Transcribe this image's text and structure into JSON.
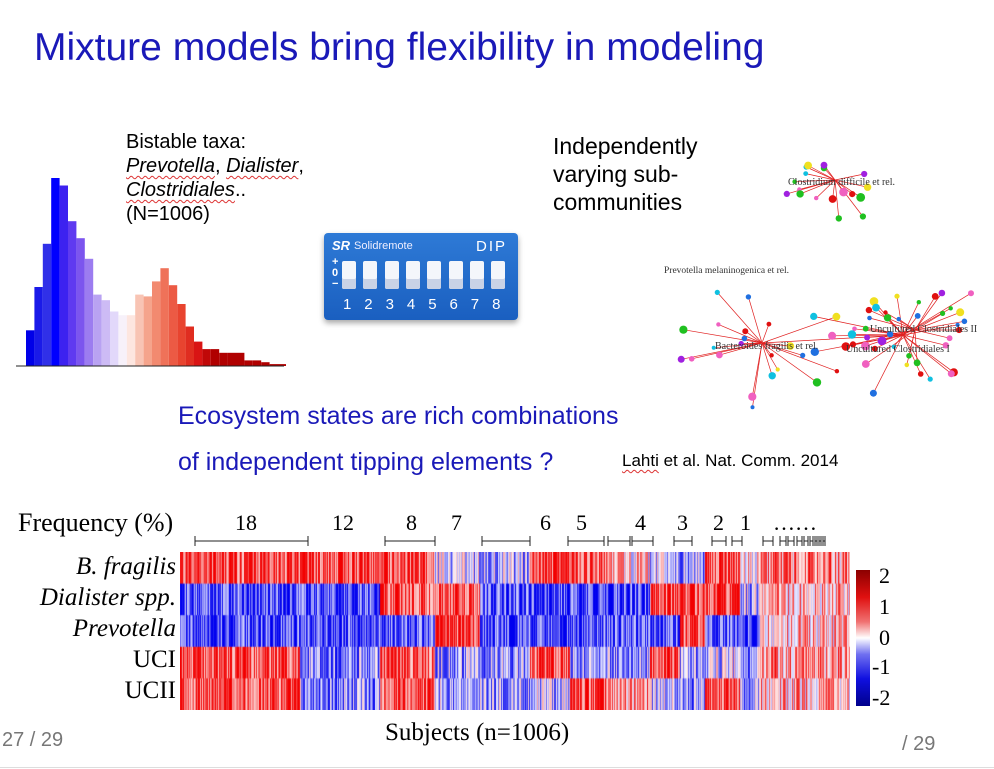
{
  "slide": {
    "title": "Mixture models bring flexibility in modeling",
    "page_left": "27 / 29",
    "page_right": "/ 29"
  },
  "bistable": {
    "line1": "Bistable taxa:",
    "taxa1": "Prevotella",
    "sep1": ", ",
    "taxa2": "Dialister",
    "sep2": ",",
    "taxa3": "Clostridiales",
    "sep3": "..",
    "n": "(N=1006)"
  },
  "histogram": {
    "values": [
      19,
      42,
      65,
      100,
      96,
      77,
      68,
      57,
      38,
      35,
      29,
      27,
      27,
      38,
      37,
      45,
      52,
      43,
      33,
      21,
      13,
      9,
      9,
      7,
      7,
      7,
      3,
      3,
      2,
      1,
      1,
      1
    ],
    "colors": [
      "#0000e8",
      "#1a1ae8",
      "#3030e8",
      "#0000ff",
      "#3d22f0",
      "#5f3af0",
      "#7c55ee",
      "#9c7cf0",
      "#b9a2f2",
      "#cdbbf5",
      "#e2d8fa",
      "#f7f1fa",
      "#fde6e0",
      "#f8c4b4",
      "#f5a48c",
      "#f28a70",
      "#ef7259",
      "#ec5a44",
      "#e8442f",
      "#e02d20",
      "#d91414",
      "#c00808",
      "#b00000",
      "#b00000",
      "#b00000",
      "#b00000",
      "#b00000",
      "#b00000",
      "#b00000",
      "#b00000",
      "#b00000",
      "#b00000"
    ]
  },
  "dip": {
    "brand": "Solidremote",
    "logo": "SR",
    "label": "DIP",
    "on": "+",
    "zero": "0",
    "off": "−",
    "numbers": [
      "1",
      "2",
      "3",
      "4",
      "5",
      "6",
      "7",
      "8"
    ]
  },
  "independent": {
    "line1": "Independently",
    "line2": "varying sub-",
    "line3": "communities"
  },
  "networks": {
    "label1": "Clostridium difficile et rel.",
    "label2": "Prevotella melaninogenica et rel.",
    "label3": "Bacteroides fragilis et rel.",
    "label4": "Uncultured Clostridiales I",
    "label5": "Uncultured Clostridiales II"
  },
  "ecosystem": {
    "line1": "Ecosystem states are rich combinations",
    "line2": "of  independent tipping elements ?"
  },
  "citation": {
    "author": "Lahti",
    "rest": " et al. Nat. Comm. 2014"
  },
  "heatmap": {
    "frequency_label": "Frequency (%)",
    "frequencies": [
      "18",
      "12",
      "8",
      "7",
      "6",
      "5",
      "4",
      "3",
      "2",
      "1",
      "……"
    ],
    "rows": [
      "B. fragilis",
      "Dialister spp.",
      "Prevotella",
      "UCI",
      "UCII"
    ],
    "xlabel": "Subjects (n=1006)",
    "colorbar_ticks": [
      "2",
      "1",
      "0",
      "-1",
      "-2"
    ]
  }
}
